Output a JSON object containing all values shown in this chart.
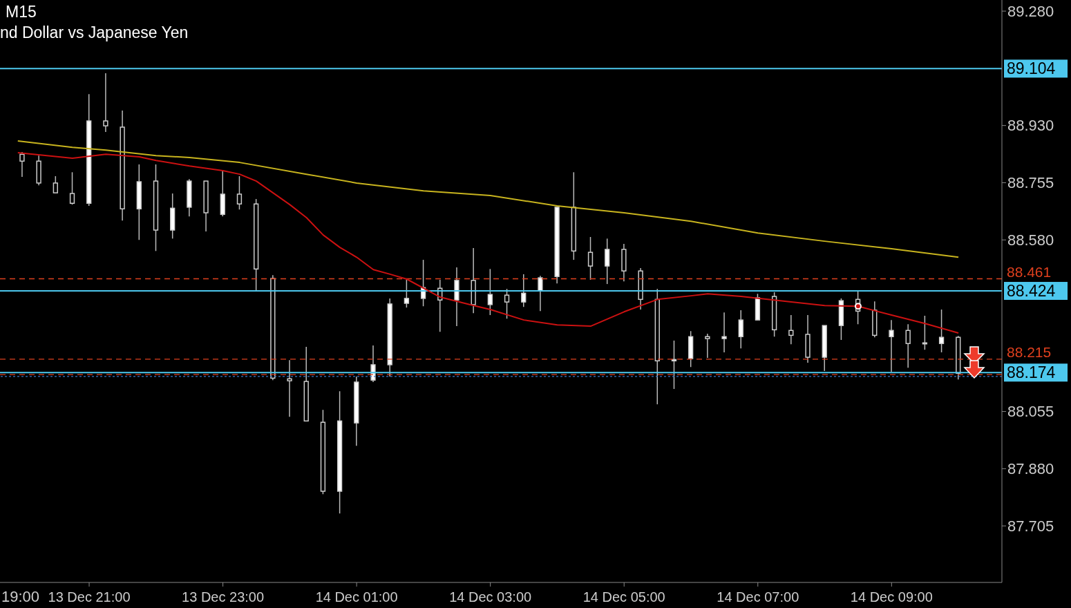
{
  "chart_data": {
    "type": "candlestick",
    "title": "M15",
    "subtitle": "nd Dollar vs Japanese Yen",
    "colors": [
      "#000000",
      "#000000",
      "#000000",
      "#000000",
      "#ffffff",
      "#000000",
      "#000000",
      "#ffffff",
      "#000000",
      "#ffffff",
      "#ffffff",
      "#000000",
      "#ffffff",
      "#000000",
      "#000000",
      "#000000",
      "#000000",
      "#000000",
      "#000000",
      "#ffffff",
      "#ffffff",
      "#ffffff",
      "#ffffff",
      "#ffffff",
      "#ffffff",
      "#000000",
      "#ffffff",
      "#000000",
      "#ffffff",
      "#000000",
      "#ffffff",
      "#ffffff",
      "#ffffff",
      "#000000",
      "#000000",
      "#ffffff",
      "#000000",
      "#000000",
      "#000000",
      "#ffffff",
      "#ffffff",
      "#000000",
      "#ffffff",
      "#ffffff",
      "#ffffff",
      "#000000",
      "#000000",
      "#000000",
      "#ffffff",
      "#ffffff",
      "#000000",
      "#000000",
      "#ffffff",
      "#000000",
      "#ffffff",
      "#ffffff",
      "#000000"
    ],
    "x": [
      "--12-13T20:00",
      "--12-13T20:15",
      "--12-13T20:30",
      "--12-13T20:45",
      "--12-13T21:00",
      "--12-13T21:15",
      "--12-13T21:30",
      "--12-13T21:45",
      "--12-13T22:00",
      "--12-13T22:15",
      "--12-13T22:30",
      "--12-13T22:45",
      "--12-13T23:00",
      "--12-13T23:15",
      "--12-13T23:30",
      "--12-13T23:45",
      "--12-14T00:00",
      "--12-14T00:15",
      "--12-14T00:30",
      "--12-14T00:45",
      "--12-14T01:00",
      "--12-14T01:15",
      "--12-14T01:30",
      "--12-14T01:45",
      "--12-14T02:00",
      "--12-14T02:15",
      "--12-14T02:30",
      "--12-14T02:45",
      "--12-14T03:00",
      "--12-14T03:15",
      "--12-14T03:30",
      "--12-14T03:45",
      "--12-14T04:00",
      "--12-14T04:15",
      "--12-14T04:30",
      "--12-14T04:45",
      "--12-14T05:00",
      "--12-14T05:15",
      "--12-14T05:30",
      "--12-14T05:45",
      "--12-14T06:00",
      "--12-14T06:15",
      "--12-14T06:30",
      "--12-14T06:45",
      "--12-14T07:00",
      "--12-14T07:15",
      "--12-14T07:30",
      "--12-14T07:45",
      "--12-14T08:00",
      "--12-14T08:15",
      "--12-14T08:30",
      "--12-14T08:45",
      "--12-14T09:00",
      "--12-14T09:15",
      "--12-14T09:30",
      "--12-14T09:45",
      "--12-14T10:00"
    ],
    "ohlc": [
      [
        88.842,
        88.849,
        88.773,
        88.821
      ],
      [
        88.821,
        88.838,
        88.747,
        88.754
      ],
      [
        88.754,
        88.775,
        88.724,
        88.724
      ],
      [
        88.722,
        88.787,
        88.688,
        88.692
      ],
      [
        88.692,
        89.026,
        88.684,
        88.944
      ],
      [
        88.944,
        89.09,
        88.91,
        88.929
      ],
      [
        88.925,
        88.976,
        88.639,
        88.675
      ],
      [
        88.675,
        88.811,
        88.58,
        88.758
      ],
      [
        88.76,
        88.811,
        88.546,
        88.61
      ],
      [
        88.61,
        88.722,
        88.584,
        88.677
      ],
      [
        88.68,
        88.766,
        88.652,
        88.76
      ],
      [
        88.76,
        88.76,
        88.606,
        88.663
      ],
      [
        88.658,
        88.792,
        88.652,
        88.72
      ],
      [
        88.72,
        88.775,
        88.673,
        88.69
      ],
      [
        88.69,
        88.705,
        88.422,
        88.491
      ],
      [
        88.462,
        88.472,
        88.151,
        88.157
      ],
      [
        88.155,
        88.212,
        88.039,
        88.149
      ],
      [
        88.147,
        88.253,
        88.026,
        88.026
      ],
      [
        88.022,
        88.06,
        87.802,
        87.811
      ],
      [
        87.811,
        88.117,
        87.743,
        88.026
      ],
      [
        88.02,
        88.162,
        87.95,
        88.145
      ],
      [
        88.151,
        88.257,
        88.145,
        88.198
      ],
      [
        88.198,
        88.401,
        88.162,
        88.384
      ],
      [
        88.386,
        88.458,
        88.373,
        88.401
      ],
      [
        88.401,
        88.519,
        88.377,
        88.434
      ],
      [
        88.432,
        88.458,
        88.299,
        88.396
      ],
      [
        88.396,
        88.496,
        88.316,
        88.456
      ],
      [
        88.456,
        88.555,
        88.356,
        88.382
      ],
      [
        88.382,
        88.491,
        88.35,
        88.413
      ],
      [
        88.411,
        88.43,
        88.339,
        88.39
      ],
      [
        88.39,
        88.475,
        88.375,
        88.417
      ],
      [
        88.424,
        88.47,
        88.362,
        88.464
      ],
      [
        88.468,
        88.68,
        88.447,
        88.68
      ],
      [
        88.68,
        88.787,
        88.519,
        88.546
      ],
      [
        88.542,
        88.589,
        88.458,
        88.5
      ],
      [
        88.5,
        88.584,
        88.445,
        88.551
      ],
      [
        88.551,
        88.568,
        88.453,
        88.485
      ],
      [
        88.485,
        88.494,
        88.367,
        88.398
      ],
      [
        88.398,
        88.43,
        88.077,
        88.21
      ],
      [
        88.21,
        88.272,
        88.124,
        88.214
      ],
      [
        88.217,
        88.301,
        88.191,
        88.284
      ],
      [
        88.284,
        88.293,
        88.219,
        88.278
      ],
      [
        88.278,
        88.358,
        88.236,
        88.284
      ],
      [
        88.284,
        88.365,
        88.248,
        88.335
      ],
      [
        88.335,
        88.415,
        88.335,
        88.403
      ],
      [
        88.407,
        88.42,
        88.284,
        88.305
      ],
      [
        88.303,
        88.35,
        88.261,
        88.288
      ],
      [
        88.291,
        88.35,
        88.204,
        88.221
      ],
      [
        88.221,
        88.318,
        88.179,
        88.318
      ],
      [
        88.318,
        88.401,
        88.274,
        88.394
      ],
      [
        88.398,
        88.422,
        88.322,
        88.362
      ],
      [
        88.365,
        88.392,
        88.282,
        88.288
      ],
      [
        88.284,
        88.335,
        88.176,
        88.303
      ],
      [
        88.303,
        88.322,
        88.189,
        88.263
      ],
      [
        88.263,
        88.348,
        88.244,
        88.265
      ],
      [
        88.263,
        88.367,
        88.236,
        88.282
      ],
      [
        88.282,
        88.286,
        88.153,
        88.172
      ]
    ],
    "series": [
      {
        "type": "line",
        "color": "#cc1111",
        "x": [
          "--12-13T19:56",
          "--12-13T20:45",
          "--12-13T21:15",
          "--12-13T21:45",
          "--12-13T22:00",
          "--12-13T22:30",
          "--12-13T23:00",
          "--12-13T23:15",
          "--12-13T23:30",
          "--12-14T00:00",
          "--12-14T00:15",
          "--12-14T00:30",
          "--12-14T00:45",
          "--12-14T01:00",
          "--12-14T01:15",
          "--12-14T01:30",
          "--12-14T01:45",
          "--12-14T02:15",
          "--12-14T02:45",
          "--12-14T03:00",
          "--12-14T03:30",
          "--12-14T04:00",
          "--12-14T04:30",
          "--12-14T05:00",
          "--12-14T05:30",
          "--12-14T06:00",
          "--12-14T06:15",
          "--12-14T06:45",
          "--12-14T07:30",
          "--12-14T08:00",
          "--12-14T08:30",
          "--12-14T09:00",
          "--12-14T09:30",
          "--12-14T10:00"
        ],
        "values": [
          88.847,
          88.83,
          88.842,
          88.834,
          88.823,
          88.806,
          88.792,
          88.781,
          88.76,
          88.688,
          88.648,
          88.595,
          88.557,
          88.527,
          88.489,
          88.475,
          88.46,
          88.405,
          88.379,
          88.367,
          88.335,
          88.32,
          88.316,
          88.36,
          88.398,
          88.409,
          88.415,
          88.407,
          88.39,
          88.379,
          88.377,
          88.35,
          88.324,
          88.295
        ]
      },
      {
        "type": "line",
        "color": "#c8b41e",
        "x": [
          "--12-13T19:56",
          "--12-13T20:45",
          "--12-13T21:15",
          "--12-13T22:00",
          "--12-13T22:30",
          "--12-13T23:15",
          "--12-14T00:15",
          "--12-14T01:00",
          "--12-14T02:00",
          "--12-14T03:00",
          "--12-14T04:00",
          "--12-14T05:00",
          "--12-14T06:00",
          "--12-14T07:00",
          "--12-14T08:00",
          "--12-14T09:00",
          "--12-14T10:00"
        ],
        "values": [
          88.883,
          88.863,
          88.855,
          88.838,
          88.832,
          88.817,
          88.781,
          88.754,
          88.73,
          88.716,
          88.684,
          88.663,
          88.637,
          88.601,
          88.576,
          88.553,
          88.527
        ]
      }
    ],
    "xlim": [
      "--12-13T19:40",
      "--12-14T10:39"
    ],
    "xticks": [
      {
        "value": "--12-13T21:00",
        "label": "13 Dec 21:00"
      },
      {
        "value": "--12-13T23:00",
        "label": "13 Dec 23:00"
      },
      {
        "value": "--12-14T01:00",
        "label": "14 Dec 01:00"
      },
      {
        "value": "--12-14T03:00",
        "label": "14 Dec 03:00"
      },
      {
        "value": "--12-14T05:00",
        "label": "14 Dec 05:00"
      },
      {
        "value": "--12-14T07:00",
        "label": "14 Dec 07:00"
      },
      {
        "value": "--12-14T09:00",
        "label": "14 Dec 09:00"
      }
    ],
    "ylim": [
      87.532,
      89.314
    ],
    "yticks": [
      {
        "value": 89.28,
        "label": "89.280"
      },
      {
        "value": 88.93,
        "label": "88.930"
      },
      {
        "value": 88.755,
        "label": "88.755"
      },
      {
        "value": 88.58,
        "label": "88.580"
      },
      {
        "value": 88.055,
        "label": "88.055"
      },
      {
        "value": 87.88,
        "label": "87.880"
      },
      {
        "value": 87.705,
        "label": "87.705"
      }
    ],
    "ref_lines": [
      {
        "axis": "y",
        "value": 89.104,
        "label": "89.104",
        "color": "#4dc8ee",
        "line_style": "solid"
      },
      {
        "axis": "y",
        "value": 88.461,
        "label": "88.461",
        "color": "#e0401e",
        "line_style": "dashed"
      },
      {
        "axis": "y",
        "value": 88.424,
        "label": "88.424",
        "color": "#4dc8ee",
        "line_style": "solid"
      },
      {
        "axis": "y",
        "value": 88.215,
        "label": "88.215",
        "color": "#e0401e",
        "line_style": "dashed"
      },
      {
        "axis": "y",
        "value": 88.174,
        "label": "88.174",
        "color": "#4dc8ee",
        "line_style": "solid"
      },
      {
        "axis": "y",
        "value": 88.168,
        "color": "#e0401e",
        "line_style": "dashed"
      },
      {
        "axis": "y",
        "value": 88.162,
        "color": "#3a78c8",
        "line_style": "dotted"
      }
    ],
    "annotations": [
      "19:00"
    ]
  }
}
